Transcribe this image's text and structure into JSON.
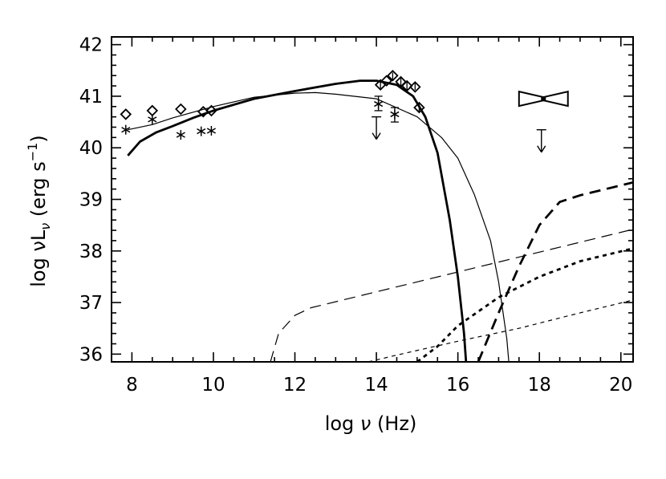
{
  "chart_data": {
    "type": "line",
    "xlabel": "log ν (Hz)",
    "ylabel": "log νL_ν  (erg s⁻¹)",
    "ylabel_parts": {
      "prefix": "log ν",
      "main": "L",
      "sub": "ν",
      "units": "  (erg s",
      "exp": "−1",
      "close": ")"
    },
    "xlabel_parts": {
      "prefix": "log ",
      "nu": "ν",
      "units": " (Hz)"
    },
    "xlim": [
      7.5,
      20.3
    ],
    "ylim": [
      35.85,
      42.15
    ],
    "x_ticks": [
      8,
      10,
      12,
      14,
      16,
      18,
      20
    ],
    "y_ticks": [
      36,
      37,
      38,
      39,
      40,
      41,
      42
    ],
    "x_tick_labels": [
      "8",
      "10",
      "12",
      "14",
      "16",
      "18",
      "20"
    ],
    "y_tick_labels": [
      "36",
      "37",
      "38",
      "39",
      "40",
      "41",
      "42"
    ],
    "series": [
      {
        "style": "solid-thick",
        "points": [
          [
            7.9,
            39.85
          ],
          [
            8.2,
            40.12
          ],
          [
            8.6,
            40.3
          ],
          [
            9.0,
            40.42
          ],
          [
            9.5,
            40.58
          ],
          [
            10.0,
            40.72
          ],
          [
            11.0,
            40.95
          ],
          [
            12.0,
            41.1
          ],
          [
            13.0,
            41.24
          ],
          [
            13.6,
            41.3
          ],
          [
            14.0,
            41.3
          ],
          [
            14.5,
            41.22
          ],
          [
            14.9,
            41.0
          ],
          [
            15.2,
            40.6
          ],
          [
            15.5,
            39.9
          ],
          [
            15.8,
            38.6
          ],
          [
            16.0,
            37.5
          ],
          [
            16.15,
            36.4
          ],
          [
            16.2,
            35.85
          ]
        ]
      },
      {
        "style": "solid-thin",
        "points": [
          [
            7.9,
            40.35
          ],
          [
            8.5,
            40.45
          ],
          [
            9.0,
            40.58
          ],
          [
            10.0,
            40.8
          ],
          [
            11.0,
            40.98
          ],
          [
            12.0,
            41.06
          ],
          [
            12.5,
            41.07
          ],
          [
            13.0,
            41.04
          ],
          [
            14.0,
            40.95
          ],
          [
            15.0,
            40.6
          ],
          [
            15.6,
            40.2
          ],
          [
            16.0,
            39.8
          ],
          [
            16.4,
            39.1
          ],
          [
            16.8,
            38.2
          ],
          [
            17.0,
            37.4
          ],
          [
            17.2,
            36.3
          ],
          [
            17.25,
            35.85
          ]
        ]
      },
      {
        "style": "dashed-thick",
        "points": [
          [
            16.5,
            35.85
          ],
          [
            17.0,
            36.8
          ],
          [
            17.5,
            37.7
          ],
          [
            18.0,
            38.5
          ],
          [
            18.5,
            38.95
          ],
          [
            19.0,
            39.08
          ],
          [
            20.3,
            39.33
          ]
        ]
      },
      {
        "style": "dashed-thin",
        "points": [
          [
            11.4,
            35.85
          ],
          [
            11.6,
            36.4
          ],
          [
            12.0,
            36.75
          ],
          [
            12.4,
            36.9
          ],
          [
            20.3,
            38.42
          ]
        ]
      },
      {
        "style": "dotted-thick",
        "points": [
          [
            15.0,
            35.85
          ],
          [
            15.5,
            36.15
          ],
          [
            16.0,
            36.55
          ],
          [
            17.0,
            37.1
          ],
          [
            18.0,
            37.5
          ],
          [
            19.0,
            37.8
          ],
          [
            20.3,
            38.05
          ]
        ]
      },
      {
        "style": "dotted-thin",
        "points": [
          [
            13.8,
            35.85
          ],
          [
            14.6,
            36.0
          ],
          [
            16.0,
            36.25
          ],
          [
            17.5,
            36.5
          ],
          [
            19.0,
            36.8
          ],
          [
            20.3,
            37.05
          ]
        ]
      }
    ],
    "diamonds": [
      [
        7.85,
        40.65
      ],
      [
        8.5,
        40.72
      ],
      [
        9.2,
        40.75
      ],
      [
        9.75,
        40.7
      ],
      [
        9.95,
        40.72
      ],
      [
        14.1,
        41.22
      ],
      [
        14.25,
        41.3
      ],
      [
        14.4,
        41.4
      ],
      [
        14.6,
        41.28
      ],
      [
        14.75,
        41.2
      ],
      [
        14.95,
        41.18
      ],
      [
        15.05,
        40.78
      ]
    ],
    "diamond_errors": [
      [
        14.1,
        41.15,
        41.28
      ],
      [
        14.4,
        41.32,
        41.46
      ],
      [
        14.6,
        41.2,
        41.35
      ],
      [
        14.75,
        41.1,
        41.28
      ],
      [
        14.95,
        41.12,
        41.25
      ],
      [
        15.05,
        40.7,
        40.86
      ]
    ],
    "stars": [
      [
        7.85,
        40.35
      ],
      [
        8.5,
        40.55
      ],
      [
        9.2,
        40.25
      ],
      [
        9.7,
        40.32
      ],
      [
        9.95,
        40.33
      ],
      [
        14.05,
        40.85
      ],
      [
        14.45,
        40.65
      ]
    ],
    "star_errors": [
      [
        14.05,
        40.72,
        41.0
      ],
      [
        14.45,
        40.5,
        40.78
      ]
    ],
    "upper_limits": [
      [
        14.0,
        40.6
      ],
      [
        18.05,
        40.35
      ]
    ],
    "bowtie": {
      "x_range": [
        17.5,
        18.7
      ],
      "y_center": 40.95,
      "half_height_ends": 0.14
    }
  }
}
